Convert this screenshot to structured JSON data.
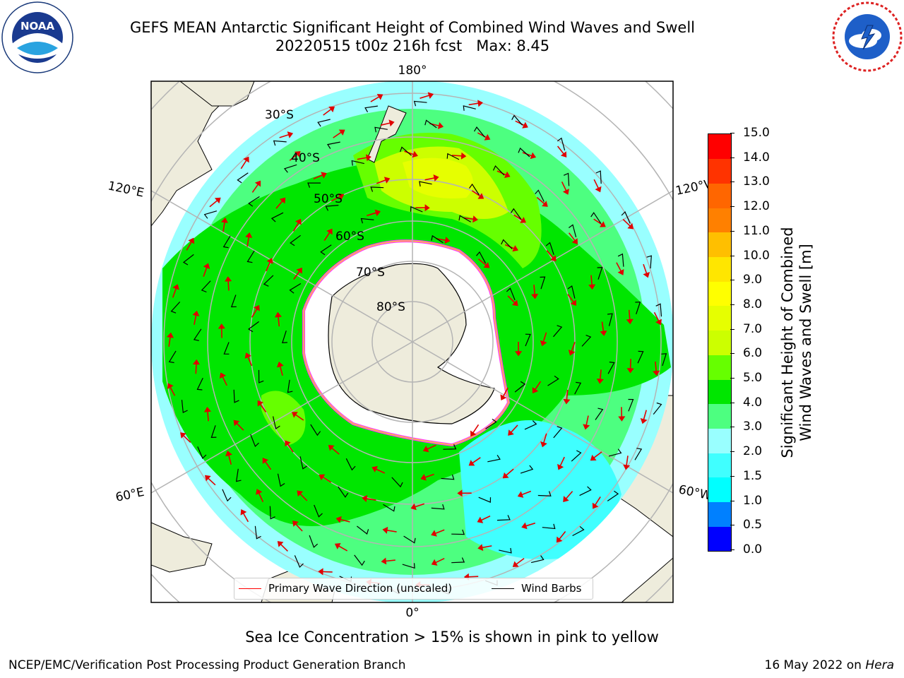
{
  "title": {
    "line1": "GEFS MEAN Antarctic Significant Height of Combined Wind Waves and Swell",
    "line2": "20220515 t00z 216h fcst   Max: 8.45"
  },
  "map": {
    "projection": "south-polar-stereographic",
    "latitude_labels": [
      "30°S",
      "40°S",
      "50°S",
      "60°S",
      "70°S",
      "80°S"
    ],
    "longitude_labels": {
      "top": "180°",
      "bottom": "0°",
      "upper_left": "120°E",
      "upper_right": "120°W",
      "lower_left": "60°E",
      "lower_right": "60°W"
    },
    "colors": {
      "land": "#eeecdc",
      "ice_edge": "#ff33ff",
      "graticule": "#b4b4b4"
    }
  },
  "legend": {
    "wave_direction_label": "Primary Wave Direction (unscaled)",
    "wave_direction_color": "#ff0000",
    "wind_barbs_label": "Wind Barbs",
    "wind_barbs_color": "#000000"
  },
  "colorbar": {
    "label_line1": "Significant Height of Combined",
    "label_line2": "Wind Waves and Swell [m]",
    "ticks": [
      "0.0",
      "0.5",
      "1.0",
      "1.5",
      "2.0",
      "3.0",
      "4.0",
      "5.0",
      "6.0",
      "7.0",
      "8.0",
      "9.0",
      "10.0",
      "11.0",
      "12.0",
      "13.0",
      "14.0",
      "15.0"
    ],
    "colors": [
      "#0000ff",
      "#0080ff",
      "#00ffff",
      "#40ffff",
      "#99ffff",
      "#4dff80",
      "#00e600",
      "#66ff00",
      "#ccff00",
      "#e6ff00",
      "#ffff00",
      "#ffe600",
      "#ffbf00",
      "#ff8000",
      "#ff6600",
      "#ff3300",
      "#ff0000"
    ]
  },
  "sea_ice_note": "Sea Ice Concentration > 15% is shown in pink to yellow",
  "footer": {
    "left": "NCEP/EMC/Verification Post Processing Product Generation Branch",
    "right_prefix": "16 May 2022 on ",
    "right_machine": "Hera"
  },
  "logos": {
    "left": "noaa-logo",
    "right": "national-weather-service-logo"
  }
}
